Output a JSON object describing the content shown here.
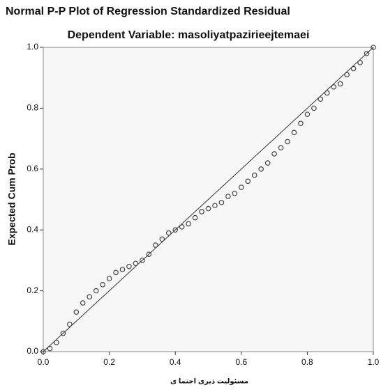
{
  "chart_data": {
    "type": "scatter",
    "title": "Normal P-P Plot of Regression Standardized Residual",
    "subtitle": "Dependent Variable: masoliyatpazirieejtemaei",
    "x_label": "مسئولیت ذیری اجتما ی",
    "y_label": "Expected Cum Prob",
    "xlim": [
      0,
      1
    ],
    "ylim": [
      0,
      1
    ],
    "xticks": [
      {
        "value": 0,
        "label": "0.0"
      },
      0.2,
      0.4,
      0.6,
      0.8,
      {
        "value": 1,
        "label": "1.0"
      }
    ],
    "yticks": [
      {
        "value": 0,
        "label": "0.0"
      },
      0.2,
      0.4,
      0.6,
      0.8,
      {
        "value": 1,
        "label": "1.0"
      }
    ],
    "reference_line": true,
    "color": "#444444",
    "x": [
      0,
      0.02,
      0.04,
      0.06,
      0.08,
      0.1,
      0.12,
      0.14,
      0.16,
      0.18,
      0.2,
      0.22,
      0.24,
      0.26,
      0.28,
      0.3,
      0.32,
      0.34,
      0.36,
      0.38,
      0.4,
      0.42,
      0.44,
      0.46,
      0.48,
      0.5,
      0.52,
      0.54,
      0.56,
      0.58,
      0.6,
      0.62,
      0.64,
      0.66,
      0.68,
      0.7,
      0.72,
      0.74,
      0.76,
      0.78,
      0.8,
      0.82,
      0.84,
      0.86,
      0.88,
      0.9,
      0.92,
      0.94,
      0.96,
      0.98,
      1
    ],
    "values": [
      0,
      0.01,
      0.03,
      0.06,
      0.09,
      0.13,
      0.16,
      0.18,
      0.2,
      0.22,
      0.24,
      0.26,
      0.27,
      0.28,
      0.29,
      0.3,
      0.32,
      0.35,
      0.37,
      0.39,
      0.4,
      0.41,
      0.42,
      0.44,
      0.46,
      0.47,
      0.48,
      0.49,
      0.51,
      0.52,
      0.54,
      0.56,
      0.58,
      0.6,
      0.62,
      0.65,
      0.67,
      0.69,
      0.72,
      0.75,
      0.78,
      0.8,
      0.83,
      0.85,
      0.87,
      0.88,
      0.91,
      0.93,
      0.95,
      0.98,
      1
    ]
  }
}
